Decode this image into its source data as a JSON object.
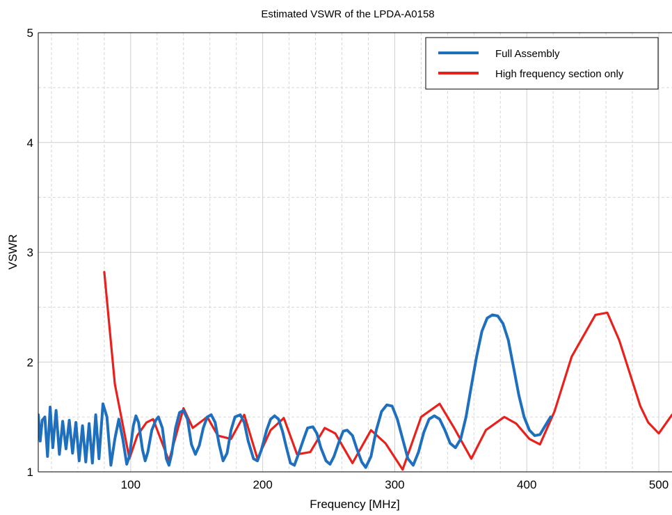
{
  "chart_data": {
    "type": "line",
    "title": "Estimated VSWR of the LPDA-A0158",
    "xlabel": "Frequency [MHz]",
    "ylabel": "VSWR",
    "xlim": [
      30,
      510
    ],
    "ylim": [
      1,
      5
    ],
    "xticks": [
      100,
      200,
      300,
      400,
      500
    ],
    "xtick_labels": [
      "100",
      "200",
      "300",
      "400",
      "500"
    ],
    "yticks": [
      1,
      2,
      3,
      4,
      5
    ],
    "ytick_labels": [
      "1",
      "2",
      "3",
      "4",
      "5"
    ],
    "grid": true,
    "legend_position": "top-right",
    "series": [
      {
        "name": "Full Assembly",
        "color": "#1f6fbf",
        "points": [
          [
            30,
            1.52
          ],
          [
            31.5,
            1.28
          ],
          [
            33,
            1.47
          ],
          [
            35,
            1.5
          ],
          [
            37,
            1.14
          ],
          [
            39,
            1.59
          ],
          [
            41,
            1.22
          ],
          [
            43.5,
            1.56
          ],
          [
            46,
            1.16
          ],
          [
            48.5,
            1.46
          ],
          [
            51,
            1.21
          ],
          [
            53.5,
            1.47
          ],
          [
            56,
            1.17
          ],
          [
            58.5,
            1.45
          ],
          [
            61,
            1.1
          ],
          [
            63.5,
            1.42
          ],
          [
            66,
            1.09
          ],
          [
            68.5,
            1.44
          ],
          [
            71,
            1.08
          ],
          [
            73.5,
            1.52
          ],
          [
            76,
            1.12
          ],
          [
            79,
            1.62
          ],
          [
            82,
            1.5
          ],
          [
            85,
            1.06
          ],
          [
            88,
            1.3
          ],
          [
            91,
            1.48
          ],
          [
            94,
            1.3
          ],
          [
            97,
            1.07
          ],
          [
            99,
            1.14
          ],
          [
            102,
            1.42
          ],
          [
            104,
            1.51
          ],
          [
            106,
            1.45
          ],
          [
            109,
            1.2
          ],
          [
            111,
            1.1
          ],
          [
            113,
            1.18
          ],
          [
            116,
            1.38
          ],
          [
            119,
            1.47
          ],
          [
            121,
            1.5
          ],
          [
            124,
            1.4
          ],
          [
            127,
            1.12
          ],
          [
            129,
            1.06
          ],
          [
            131,
            1.16
          ],
          [
            134,
            1.4
          ],
          [
            137,
            1.54
          ],
          [
            140,
            1.56
          ],
          [
            143,
            1.48
          ],
          [
            146,
            1.25
          ],
          [
            149,
            1.16
          ],
          [
            152,
            1.24
          ],
          [
            155,
            1.4
          ],
          [
            158,
            1.5
          ],
          [
            161,
            1.52
          ],
          [
            164,
            1.45
          ],
          [
            167,
            1.25
          ],
          [
            170,
            1.1
          ],
          [
            173,
            1.17
          ],
          [
            176,
            1.38
          ],
          [
            179,
            1.5
          ],
          [
            183,
            1.52
          ],
          [
            186,
            1.45
          ],
          [
            189,
            1.28
          ],
          [
            193,
            1.12
          ],
          [
            196,
            1.1
          ],
          [
            199,
            1.2
          ],
          [
            203,
            1.38
          ],
          [
            206,
            1.48
          ],
          [
            209,
            1.51
          ],
          [
            212,
            1.48
          ],
          [
            215,
            1.37
          ],
          [
            218,
            1.22
          ],
          [
            221,
            1.08
          ],
          [
            224,
            1.06
          ],
          [
            227,
            1.16
          ],
          [
            231,
            1.3
          ],
          [
            234,
            1.4
          ],
          [
            238,
            1.41
          ],
          [
            241,
            1.35
          ],
          [
            244,
            1.22
          ],
          [
            248,
            1.1
          ],
          [
            251,
            1.07
          ],
          [
            254,
            1.14
          ],
          [
            258,
            1.28
          ],
          [
            261,
            1.37
          ],
          [
            264,
            1.38
          ],
          [
            268,
            1.33
          ],
          [
            271,
            1.22
          ],
          [
            275,
            1.09
          ],
          [
            278,
            1.04
          ],
          [
            282,
            1.14
          ],
          [
            286,
            1.38
          ],
          [
            290,
            1.55
          ],
          [
            294,
            1.61
          ],
          [
            298,
            1.6
          ],
          [
            302,
            1.48
          ],
          [
            306,
            1.3
          ],
          [
            310,
            1.12
          ],
          [
            314,
            1.06
          ],
          [
            318,
            1.18
          ],
          [
            322,
            1.36
          ],
          [
            326,
            1.48
          ],
          [
            330,
            1.51
          ],
          [
            334,
            1.48
          ],
          [
            338,
            1.38
          ],
          [
            342,
            1.26
          ],
          [
            346,
            1.22
          ],
          [
            350,
            1.3
          ],
          [
            354,
            1.5
          ],
          [
            358,
            1.78
          ],
          [
            362,
            2.05
          ],
          [
            366,
            2.28
          ],
          [
            370,
            2.4
          ],
          [
            374,
            2.43
          ],
          [
            378,
            2.42
          ],
          [
            382,
            2.35
          ],
          [
            386,
            2.2
          ],
          [
            390,
            1.95
          ],
          [
            394,
            1.7
          ],
          [
            398,
            1.5
          ],
          [
            402,
            1.38
          ],
          [
            406,
            1.33
          ],
          [
            410,
            1.34
          ],
          [
            414,
            1.42
          ],
          [
            418,
            1.5
          ]
        ]
      },
      {
        "name": "High frequency section only",
        "color": "#e8211d",
        "points": [
          [
            80,
            2.82
          ],
          [
            88,
            1.8
          ],
          [
            99,
            1.12
          ],
          [
            105,
            1.33
          ],
          [
            112,
            1.45
          ],
          [
            117,
            1.48
          ],
          [
            129,
            1.1
          ],
          [
            140,
            1.58
          ],
          [
            147,
            1.4
          ],
          [
            158,
            1.5
          ],
          [
            166,
            1.33
          ],
          [
            176,
            1.3
          ],
          [
            186,
            1.52
          ],
          [
            196,
            1.12
          ],
          [
            206,
            1.38
          ],
          [
            216,
            1.49
          ],
          [
            226,
            1.16
          ],
          [
            236,
            1.18
          ],
          [
            247,
            1.4
          ],
          [
            255,
            1.35
          ],
          [
            268,
            1.08
          ],
          [
            282,
            1.38
          ],
          [
            293,
            1.26
          ],
          [
            306,
            1.02
          ],
          [
            320,
            1.5
          ],
          [
            334,
            1.62
          ],
          [
            345,
            1.4
          ],
          [
            358,
            1.12
          ],
          [
            369,
            1.38
          ],
          [
            383,
            1.5
          ],
          [
            392,
            1.44
          ],
          [
            402,
            1.3
          ],
          [
            410,
            1.25
          ],
          [
            421,
            1.55
          ],
          [
            434,
            2.05
          ],
          [
            452,
            2.43
          ],
          [
            461,
            2.45
          ],
          [
            470,
            2.2
          ],
          [
            486,
            1.6
          ],
          [
            492,
            1.45
          ],
          [
            500,
            1.35
          ],
          [
            510,
            1.52
          ]
        ]
      }
    ]
  }
}
